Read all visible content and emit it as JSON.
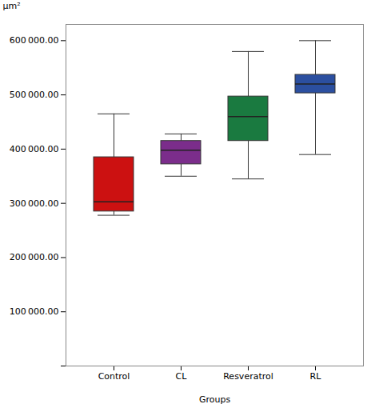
{
  "chart_data": {
    "type": "box",
    "categories": [
      "Control",
      "CL",
      "Resveratrol",
      "RL"
    ],
    "colors": [
      "#cc1111",
      "#7b2d8b",
      "#1a7a40",
      "#2b4fa0"
    ],
    "boxes": [
      {
        "q1": 285000,
        "median": 303000,
        "q3": 385000,
        "whisker_low": 278000,
        "whisker_high": 465000
      },
      {
        "q1": 372000,
        "median": 398000,
        "q3": 415000,
        "whisker_low": 350000,
        "whisker_high": 428000
      },
      {
        "q1": 415000,
        "median": 460000,
        "q3": 497000,
        "whisker_low": 345000,
        "whisker_high": 580000
      },
      {
        "q1": 503000,
        "median": 520000,
        "q3": 537000,
        "whisker_low": 390000,
        "whisker_high": 600000
      }
    ],
    "xlabel": "Groups",
    "ylabel": "μm²",
    "ylim": [
      0,
      630000
    ],
    "yticks": [
      {
        "value": 0,
        "label": ""
      },
      {
        "value": 100000,
        "label": "100 000.00"
      },
      {
        "value": 200000,
        "label": "200 000.00"
      },
      {
        "value": 300000,
        "label": "300 000.00"
      },
      {
        "value": 400000,
        "label": "400 000.00"
      },
      {
        "value": 500000,
        "label": "500 000.00"
      },
      {
        "value": 600000,
        "label": "600 000.00"
      }
    ],
    "grid": false
  }
}
